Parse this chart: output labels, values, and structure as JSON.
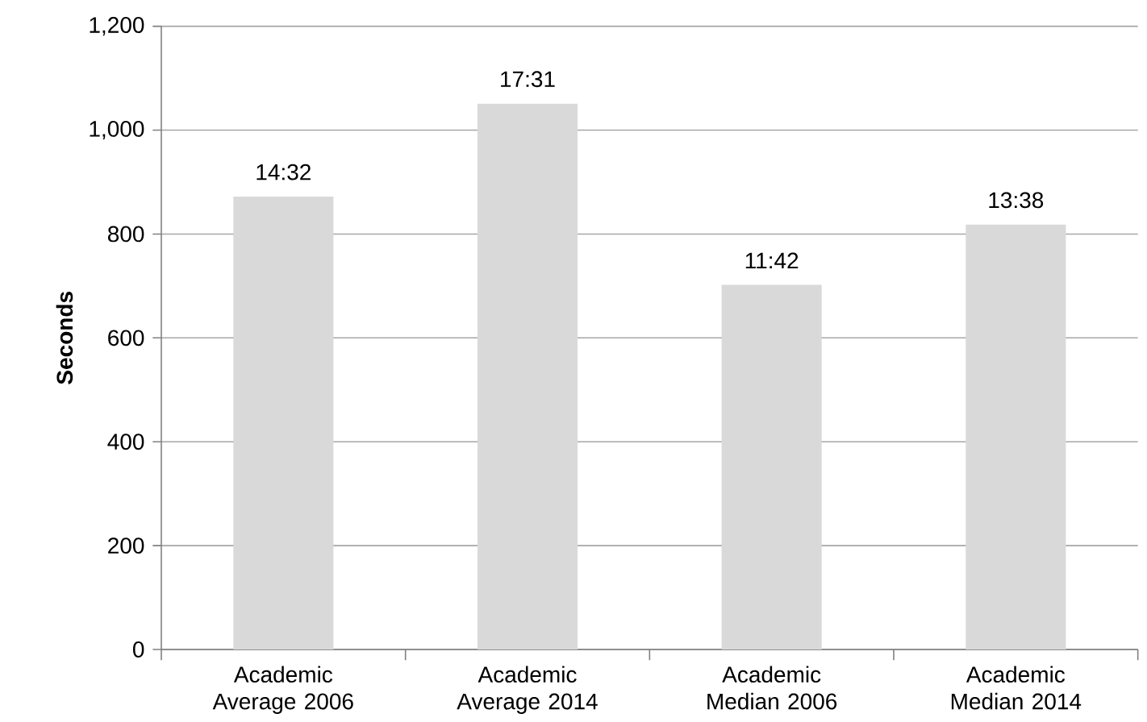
{
  "chart_data": {
    "type": "bar",
    "ylabel": "Seconds",
    "categories": [
      "Academic Average 2006",
      "Academic Average 2014",
      "Academic Median 2006",
      "Academic Median 2014"
    ],
    "values": [
      872,
      1051,
      702,
      818
    ],
    "value_labels": [
      "14:32",
      "17:31",
      "11:42",
      "13:38"
    ],
    "color": "#d9d9d9",
    "ylim": [
      0,
      1200
    ],
    "yticks": [
      0,
      200,
      400,
      600,
      800,
      {
        "value": 1000,
        "label": "1,000"
      },
      {
        "value": 1200,
        "label": "1,200"
      }
    ],
    "grid": "y"
  }
}
